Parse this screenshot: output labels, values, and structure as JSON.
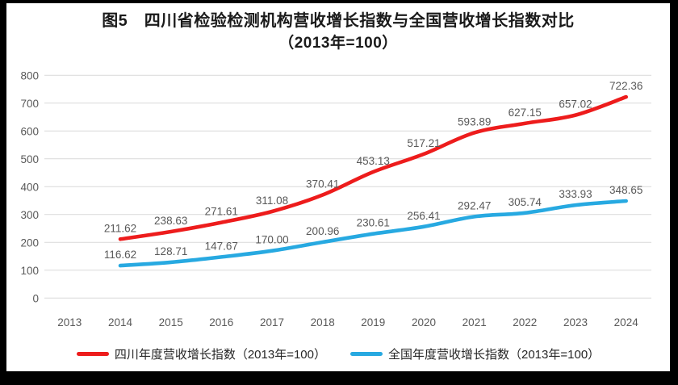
{
  "title": {
    "line1": "图5　四川省检验检测机构营收增长指数与全国营收增长指数对比",
    "line2": "（2013年=100）"
  },
  "legend": [
    {
      "label": "四川年度营收增长指数（2013年=100）",
      "color": "#ed1c1c"
    },
    {
      "label": "全国年度营收增长指数（2013年=100）",
      "color": "#27a9e1"
    }
  ],
  "chart_data": {
    "type": "line",
    "title": "图5 四川省检验检测机构营收增长指数与全国营收增长指数对比（2013年=100）",
    "categories": [
      "2013",
      "2014",
      "2015",
      "2016",
      "2017",
      "2018",
      "2019",
      "2020",
      "2021",
      "2022",
      "2023",
      "2024"
    ],
    "series": [
      {
        "name": "四川年度营收增长指数（2013年=100）",
        "color": "#ed1c1c",
        "values": [
          null,
          211.62,
          238.63,
          271.61,
          311.08,
          370.41,
          453.13,
          517.21,
          593.89,
          627.15,
          657.02,
          722.36
        ],
        "labels": [
          "",
          "211.62",
          "238.63",
          "271.61",
          "311.08",
          "370.41",
          "453.13",
          "517.21",
          "593.89",
          "627.15",
          "657.02",
          "722.36"
        ]
      },
      {
        "name": "全国年度营收增长指数（2013年=100）",
        "color": "#27a9e1",
        "values": [
          null,
          116.62,
          128.71,
          147.67,
          170.0,
          200.96,
          230.61,
          256.41,
          292.47,
          305.74,
          333.93,
          348.65
        ],
        "labels": [
          "",
          "116.62",
          "128.71",
          "147.67",
          "170.00",
          "200.96",
          "230.61",
          "256.41",
          "292.47",
          "305.74",
          "333.93",
          "348.65"
        ]
      }
    ],
    "xlabel": "",
    "ylabel": "",
    "ylim": [
      0,
      800
    ],
    "yticks": [
      "0",
      "100",
      "200",
      "300",
      "400",
      "500",
      "600",
      "700",
      "800"
    ],
    "ytick_step": 100,
    "grid": true,
    "gridline_color": "#d9d9d9",
    "tick_color": "#595959",
    "data_label_color": "#595959",
    "legend_position": "bottom",
    "smoothed_lines": true
  }
}
